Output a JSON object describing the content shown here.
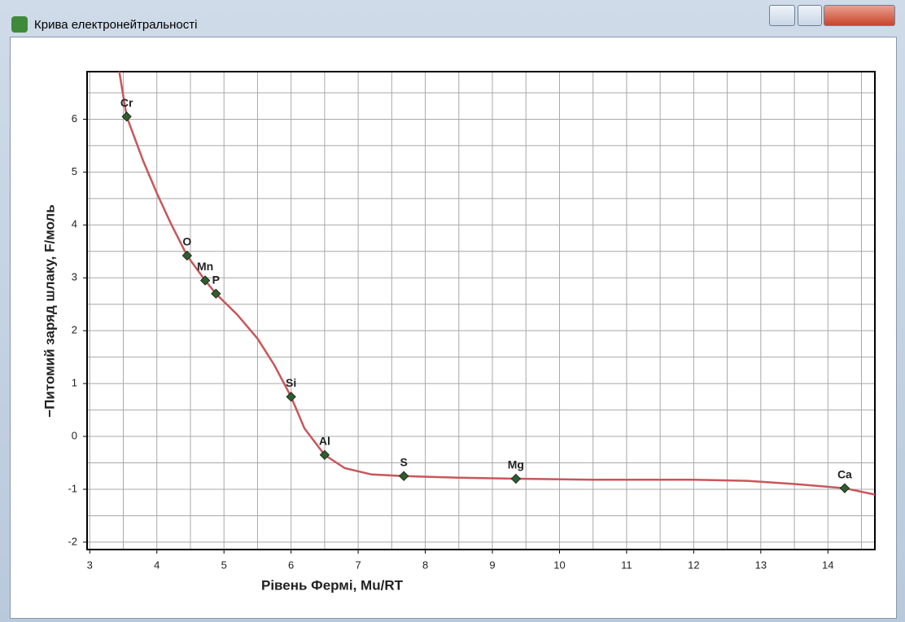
{
  "window": {
    "title": "Крива електронейтральності"
  },
  "chart_data": {
    "type": "line",
    "x_label": "Рівень Фермі, Mu/RT",
    "y_label": "−Питомий заряд шлаку, F/моль",
    "xlim": [
      2.96,
      14.7
    ],
    "ylim": [
      -2.14,
      6.9
    ],
    "xticks": [
      3,
      4,
      5,
      6,
      7,
      8,
      9,
      10,
      11,
      12,
      13,
      14
    ],
    "yticks": [
      -2,
      -1,
      0,
      1,
      2,
      3,
      4,
      5,
      6
    ],
    "xminorticks": [
      3.5,
      4.5,
      5.5,
      6.5,
      7.5,
      8.5,
      9.5,
      10.5,
      11.5,
      12.5,
      13.5,
      14.5
    ],
    "yminorticks": [
      -1.5,
      -0.5,
      0.5,
      1.5,
      2.5,
      3.5,
      4.5,
      5.5,
      6.5
    ],
    "grid": true,
    "curve": {
      "color": "#c8575a",
      "x": [
        3.44,
        3.55,
        3.8,
        4.0,
        4.2,
        4.45,
        4.72,
        4.88,
        5.2,
        5.5,
        5.75,
        6.0,
        6.2,
        6.5,
        6.8,
        7.2,
        7.68,
        8.5,
        9.35,
        10.5,
        12.0,
        12.8,
        13.5,
        14.25,
        14.7
      ],
      "y": [
        6.9,
        6.05,
        5.2,
        4.6,
        4.05,
        3.42,
        2.95,
        2.7,
        2.3,
        1.85,
        1.35,
        0.75,
        0.15,
        -0.35,
        -0.6,
        -0.72,
        -0.75,
        -0.78,
        -0.8,
        -0.82,
        -0.82,
        -0.84,
        -0.9,
        -0.98,
        -1.1
      ]
    },
    "points": {
      "color": "#2e5d2e",
      "labels": [
        "Cr",
        "O",
        "Mn",
        "P",
        "Si",
        "Al",
        "S",
        "Mg",
        "Ca"
      ],
      "x": [
        3.55,
        4.45,
        4.72,
        4.88,
        6.0,
        6.5,
        7.68,
        9.35,
        14.25
      ],
      "y": [
        6.05,
        3.42,
        2.95,
        2.7,
        0.75,
        -0.35,
        -0.75,
        -0.8,
        -0.98
      ]
    }
  }
}
